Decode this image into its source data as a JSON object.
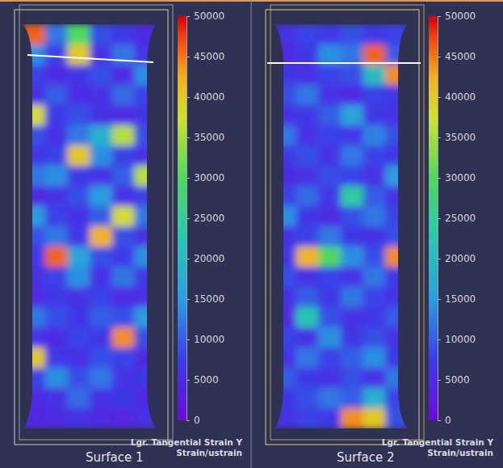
{
  "chart_data": [
    {
      "type": "heatmap",
      "title": "Surface 1",
      "colorbar_label": "Lgr. Tangential Strain Y",
      "colorbar_unit": "Strain/ustrain",
      "color_range": [
        0,
        50000
      ],
      "color_ticks": [
        0,
        5000,
        10000,
        15000,
        20000,
        25000,
        30000,
        35000,
        40000,
        45000,
        50000
      ],
      "cells": [
        [
          46000,
          12000,
          30000,
          9000,
          7000,
          5000
        ],
        [
          14000,
          8000,
          40000,
          6000,
          12000,
          6000
        ],
        [
          8000,
          5000,
          7000,
          9000,
          5000,
          14000
        ],
        [
          6000,
          10000,
          5000,
          6000,
          11000,
          8000
        ],
        [
          38000,
          7000,
          9000,
          6000,
          5000,
          7000
        ],
        [
          9000,
          6000,
          12000,
          18000,
          36000,
          9000
        ],
        [
          7000,
          8000,
          40000,
          14000,
          8000,
          6000
        ],
        [
          12000,
          14000,
          7000,
          6000,
          10000,
          36000
        ],
        [
          5000,
          6000,
          9000,
          15000,
          6000,
          8000
        ],
        [
          15000,
          8000,
          6000,
          10000,
          38000,
          12000
        ],
        [
          9000,
          12000,
          7000,
          42000,
          9000,
          6000
        ],
        [
          7000,
          46000,
          16000,
          9000,
          7000,
          14000
        ],
        [
          6000,
          8000,
          14000,
          6000,
          12000,
          7000
        ],
        [
          5000,
          7000,
          6000,
          8000,
          5000,
          6000
        ],
        [
          12000,
          9000,
          7000,
          10000,
          9000,
          15000
        ],
        [
          6000,
          5000,
          8000,
          7000,
          44000,
          9000
        ],
        [
          40000,
          7000,
          6000,
          9000,
          8000,
          5000
        ],
        [
          8000,
          14000,
          9000,
          12000,
          6000,
          7000
        ],
        [
          5000,
          6000,
          11000,
          6000,
          7000,
          5000
        ],
        [
          4000,
          5000,
          6000,
          5000,
          4000,
          6000
        ]
      ]
    },
    {
      "type": "heatmap",
      "title": "Surface 2",
      "colorbar_label": "Lgr. Tangential Strain Y",
      "colorbar_unit": "Strain/ustrain",
      "color_range": [
        0,
        50000
      ],
      "color_ticks": [
        0,
        5000,
        10000,
        15000,
        20000,
        25000,
        30000,
        35000,
        40000,
        45000,
        50000
      ],
      "cells": [
        [
          6000,
          8000,
          7000,
          9000,
          7000,
          8000
        ],
        [
          5000,
          7000,
          14000,
          12000,
          46000,
          10000
        ],
        [
          7000,
          6000,
          8000,
          9000,
          20000,
          44000
        ],
        [
          9000,
          12000,
          6000,
          5000,
          8000,
          7000
        ],
        [
          6000,
          7000,
          10000,
          16000,
          7000,
          6000
        ],
        [
          12000,
          6000,
          8000,
          7000,
          13000,
          9000
        ],
        [
          7000,
          9000,
          6000,
          12000,
          8000,
          7000
        ],
        [
          5000,
          6000,
          9000,
          8000,
          6000,
          15000
        ],
        [
          8000,
          11000,
          7000,
          24000,
          10000,
          6000
        ],
        [
          14000,
          7000,
          5000,
          9000,
          12000,
          8000
        ],
        [
          6000,
          8000,
          12000,
          7000,
          6000,
          9000
        ],
        [
          7000,
          42000,
          30000,
          14000,
          9000,
          44000
        ],
        [
          9000,
          6000,
          8000,
          6000,
          12000,
          7000
        ],
        [
          6000,
          10000,
          7000,
          12000,
          8000,
          6000
        ],
        [
          5000,
          22000,
          9000,
          6000,
          7000,
          10000
        ],
        [
          8000,
          6000,
          14000,
          7000,
          9000,
          6000
        ],
        [
          6000,
          12000,
          8000,
          10000,
          14000,
          7000
        ],
        [
          10000,
          7000,
          6000,
          9000,
          6000,
          12000
        ],
        [
          7000,
          9000,
          12000,
          10000,
          18000,
          8000
        ],
        [
          6000,
          8000,
          7000,
          44000,
          40000,
          9000
        ]
      ]
    }
  ]
}
